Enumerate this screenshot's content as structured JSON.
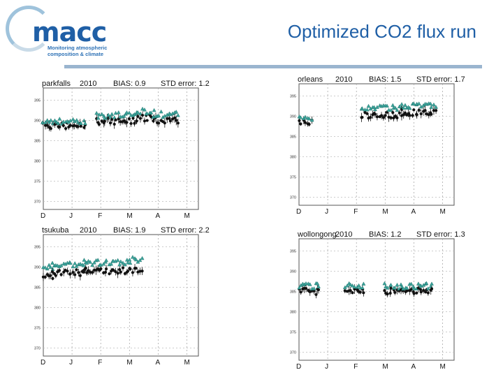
{
  "header": {
    "title": "Optimized CO2 flux run",
    "logo": {
      "word": "macc",
      "tagline_1": "Monitoring atmospheric",
      "tagline_2": "composition & climate"
    }
  },
  "colors": {
    "title": "#1f5fa6",
    "rule": "#9ab5cf",
    "model": "#3aa39a",
    "observed": "#111111"
  },
  "chart_data": [
    {
      "type": "scatter",
      "station": "parkfalls",
      "year": "2010",
      "bias_label": "BIAS: 0.9",
      "std_label": "STD error: 1.2",
      "x_ticks": [
        "D",
        "J",
        "F",
        "M",
        "A",
        "M"
      ],
      "y_ticks": [
        "395",
        "390",
        "385",
        "380",
        "375",
        "370"
      ],
      "ylim": [
        368,
        398
      ],
      "segments": [
        {
          "x0": 0.0,
          "x1": 0.27,
          "obs": 388.7,
          "model": 389.7
        },
        {
          "x0": 0.34,
          "x1": 0.6,
          "obs": 389.8,
          "model": 391.2
        },
        {
          "x0": 0.6,
          "x1": 0.71,
          "obs": 390.6,
          "model": 392.2
        },
        {
          "x0": 0.71,
          "x1": 0.87,
          "obs": 390.0,
          "model": 391.4
        }
      ]
    },
    {
      "type": "scatter",
      "station": "orleans",
      "year": "2010",
      "bias_label": "BIAS: 1.5",
      "std_label": "STD error: 1.7",
      "x_ticks": [
        "D",
        "J",
        "F",
        "M",
        "A",
        "M"
      ],
      "y_ticks": [
        "395",
        "390",
        "385",
        "380",
        "375",
        "370"
      ],
      "ylim": [
        368,
        398
      ],
      "segments": [
        {
          "x0": 0.0,
          "x1": 0.08,
          "obs": 388.5,
          "model": 389.2
        },
        {
          "x0": 0.4,
          "x1": 0.66,
          "obs": 390.3,
          "model": 392.0
        },
        {
          "x0": 0.66,
          "x1": 0.88,
          "obs": 390.9,
          "model": 392.6
        }
      ]
    },
    {
      "type": "scatter",
      "station": "tsukuba",
      "year": "2010",
      "bias_label": "BIAS: 1.9",
      "std_label": "STD error: 2.2",
      "x_ticks": [
        "D",
        "J",
        "F",
        "M",
        "A",
        "M"
      ],
      "y_ticks": [
        "395",
        "390",
        "385",
        "380",
        "375",
        "370"
      ],
      "ylim": [
        368,
        398
      ],
      "segments": [
        {
          "x0": 0.0,
          "x1": 0.06,
          "obs": 387.7,
          "model": 389.8
        },
        {
          "x0": 0.06,
          "x1": 0.26,
          "obs": 388.6,
          "model": 390.4
        },
        {
          "x0": 0.26,
          "x1": 0.56,
          "obs": 389.0,
          "model": 391.0
        },
        {
          "x0": 0.56,
          "x1": 0.64,
          "obs": 389.4,
          "model": 391.8
        }
      ]
    },
    {
      "type": "scatter",
      "station": "wollongong",
      "year": "2010",
      "bias_label": "BIAS: 1.2",
      "std_label": "STD error: 1.3",
      "x_ticks": [
        "D",
        "J",
        "F",
        "M",
        "A",
        "M"
      ],
      "y_ticks": [
        "395",
        "390",
        "385",
        "380",
        "375",
        "370"
      ],
      "ylim": [
        368,
        398
      ],
      "segments": [
        {
          "x0": 0.0,
          "x1": 0.13,
          "obs": 385.0,
          "model": 386.3
        },
        {
          "x0": 0.3,
          "x1": 0.42,
          "obs": 385.3,
          "model": 386.5
        },
        {
          "x0": 0.55,
          "x1": 0.86,
          "obs": 385.1,
          "model": 386.3
        }
      ]
    }
  ]
}
